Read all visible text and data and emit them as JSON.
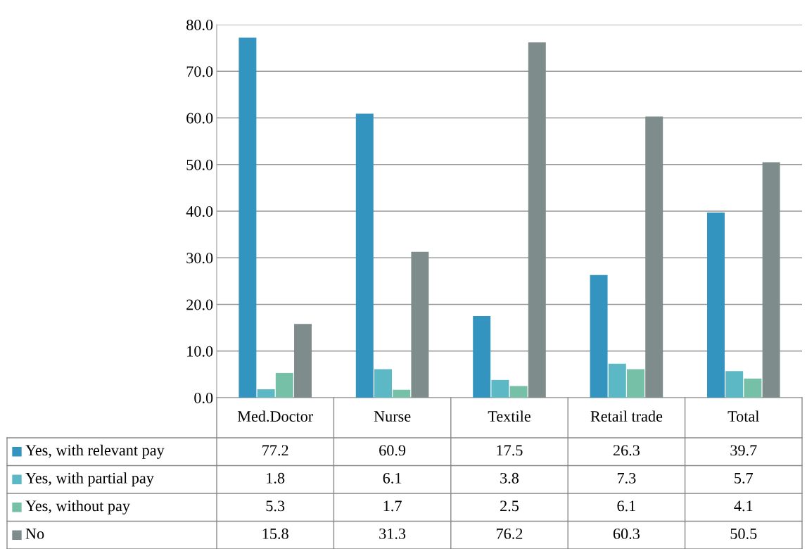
{
  "chart_data": {
    "type": "bar",
    "categories": [
      "Med.Doctor",
      "Nurse",
      "Textile",
      "Retail trade",
      "Total"
    ],
    "series": [
      {
        "name": "Yes, with relevant pay",
        "color": "#3494c0",
        "values": [
          77.2,
          60.9,
          17.5,
          26.3,
          39.7
        ]
      },
      {
        "name": "Yes, with partial pay",
        "color": "#5bb8c4",
        "values": [
          1.8,
          6.1,
          3.8,
          7.3,
          5.7
        ]
      },
      {
        "name": "Yes, without pay",
        "color": "#76c0a8",
        "values": [
          5.3,
          1.7,
          2.5,
          6.1,
          4.1
        ]
      },
      {
        "name": "No",
        "color": "#7f8c8c",
        "values": [
          15.8,
          31.3,
          76.2,
          60.3,
          50.5
        ]
      }
    ],
    "ylim": [
      0,
      80
    ],
    "yticks": [
      {
        "value": 0,
        "label": "0.0"
      },
      {
        "value": 10,
        "label": "10.0"
      },
      {
        "value": 20,
        "label": "20.0"
      },
      {
        "value": 30,
        "label": "30.0"
      },
      {
        "value": 40,
        "label": "40.0"
      },
      {
        "value": 50,
        "label": "50.0"
      },
      {
        "value": 60,
        "label": "60.0"
      },
      {
        "value": 70,
        "label": "70.0"
      },
      {
        "value": 80,
        "label": "80.0"
      }
    ],
    "grid": "y",
    "legend": "bottom",
    "data_labels": true
  }
}
